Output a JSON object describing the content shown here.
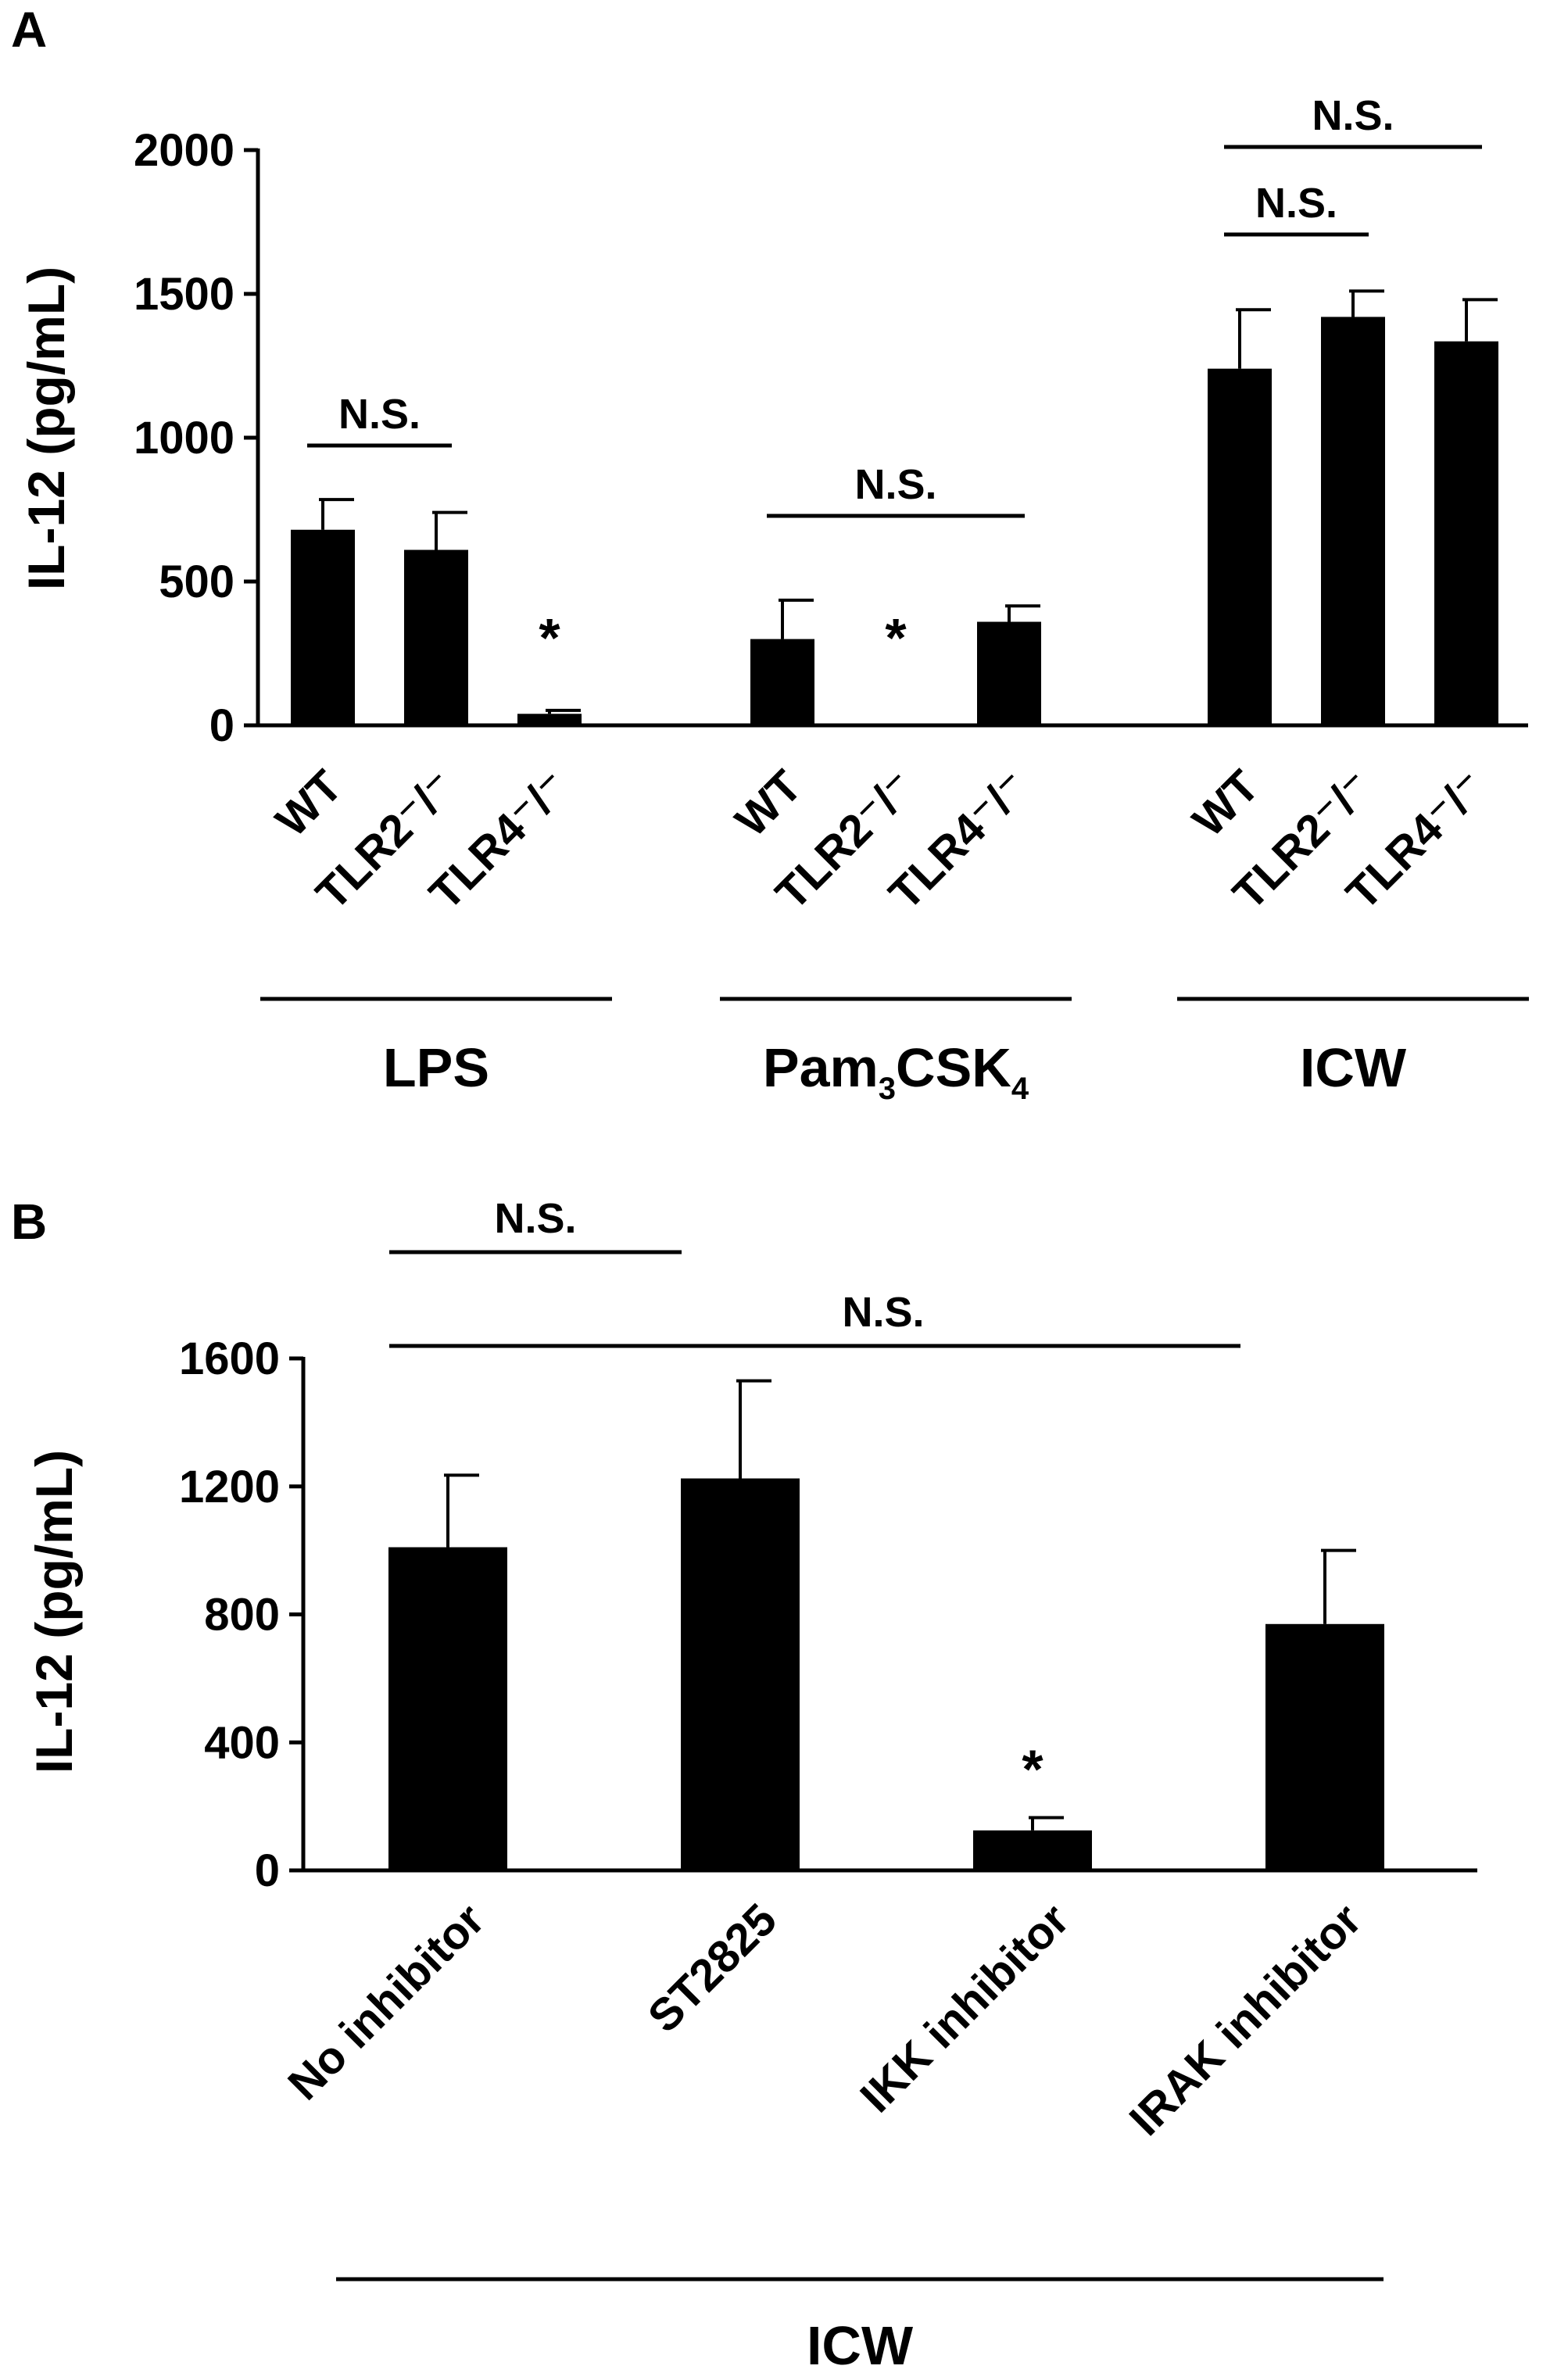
{
  "figure": {
    "panels": [
      {
        "letter": "A",
        "ylabel": "IL-12 (pg/mL)",
        "ylim": [
          0,
          2000
        ],
        "yticks": [
          "0",
          "500",
          "1000",
          "1500",
          "2000"
        ]
      },
      {
        "letter": "B",
        "ylabel": "IL-12 (pg/mL)",
        "ylim": [
          0,
          1600
        ],
        "yticks": [
          "0",
          "400",
          "800",
          "1200",
          "1600"
        ]
      }
    ]
  },
  "chart_data": [
    {
      "type": "bar",
      "panel": "A",
      "ylabel": "IL-12 (pg/mL)",
      "ylim": [
        0,
        2000
      ],
      "groups": [
        {
          "label": "LPS",
          "categories": [
            "WT",
            "TLR2⁻/⁻",
            "TLR4⁻/⁻"
          ],
          "values": [
            680,
            610,
            40
          ],
          "errors": [
            105,
            130,
            12
          ],
          "annotations": [
            "",
            "",
            "*"
          ]
        },
        {
          "label": "Pam",
          "label_sub1": "3",
          "label_mid": "CSK",
          "label_sub2": "4",
          "categories": [
            "WT",
            "TLR2⁻/⁻",
            "TLR4⁻/⁻"
          ],
          "values": [
            300,
            5,
            360
          ],
          "errors": [
            135,
            0,
            55
          ],
          "annotations": [
            "",
            "*",
            ""
          ]
        },
        {
          "label": "ICW",
          "categories": [
            "WT",
            "TLR2⁻/⁻",
            "TLR4⁻/⁻"
          ],
          "values": [
            1240,
            1420,
            1335
          ],
          "errors": [
            205,
            90,
            145
          ],
          "annotations": [
            "",
            "",
            ""
          ]
        }
      ],
      "significance": [
        {
          "label": "N.S.",
          "from_group": 0,
          "from_bar": 0,
          "to_group": 0,
          "to_bar": 1
        },
        {
          "label": "N.S.",
          "from_group": 1,
          "from_bar": 0,
          "to_group": 1,
          "to_bar": 2
        },
        {
          "label": "N.S.",
          "from_group": 2,
          "from_bar": 0,
          "to_group": 2,
          "to_bar": 1
        },
        {
          "label": "N.S.",
          "from_group": 2,
          "from_bar": 0,
          "to_group": 2,
          "to_bar": 2
        }
      ]
    },
    {
      "type": "bar",
      "panel": "B",
      "ylabel": "IL-12 (pg/mL)",
      "ylim": [
        0,
        1600
      ],
      "categories": [
        "No inhibitor",
        "ST2825",
        "IKK inhibitor",
        "IRAK inhibitor"
      ],
      "values": [
        1010,
        1225,
        125,
        770
      ],
      "errors": [
        225,
        305,
        40,
        230
      ],
      "annotations": [
        "",
        "",
        "*",
        ""
      ],
      "group_label": "ICW",
      "significance": [
        {
          "label": "N.S.",
          "from": 0,
          "to": 1
        },
        {
          "label": "N.S.",
          "from": 0,
          "to": 3
        }
      ]
    }
  ]
}
